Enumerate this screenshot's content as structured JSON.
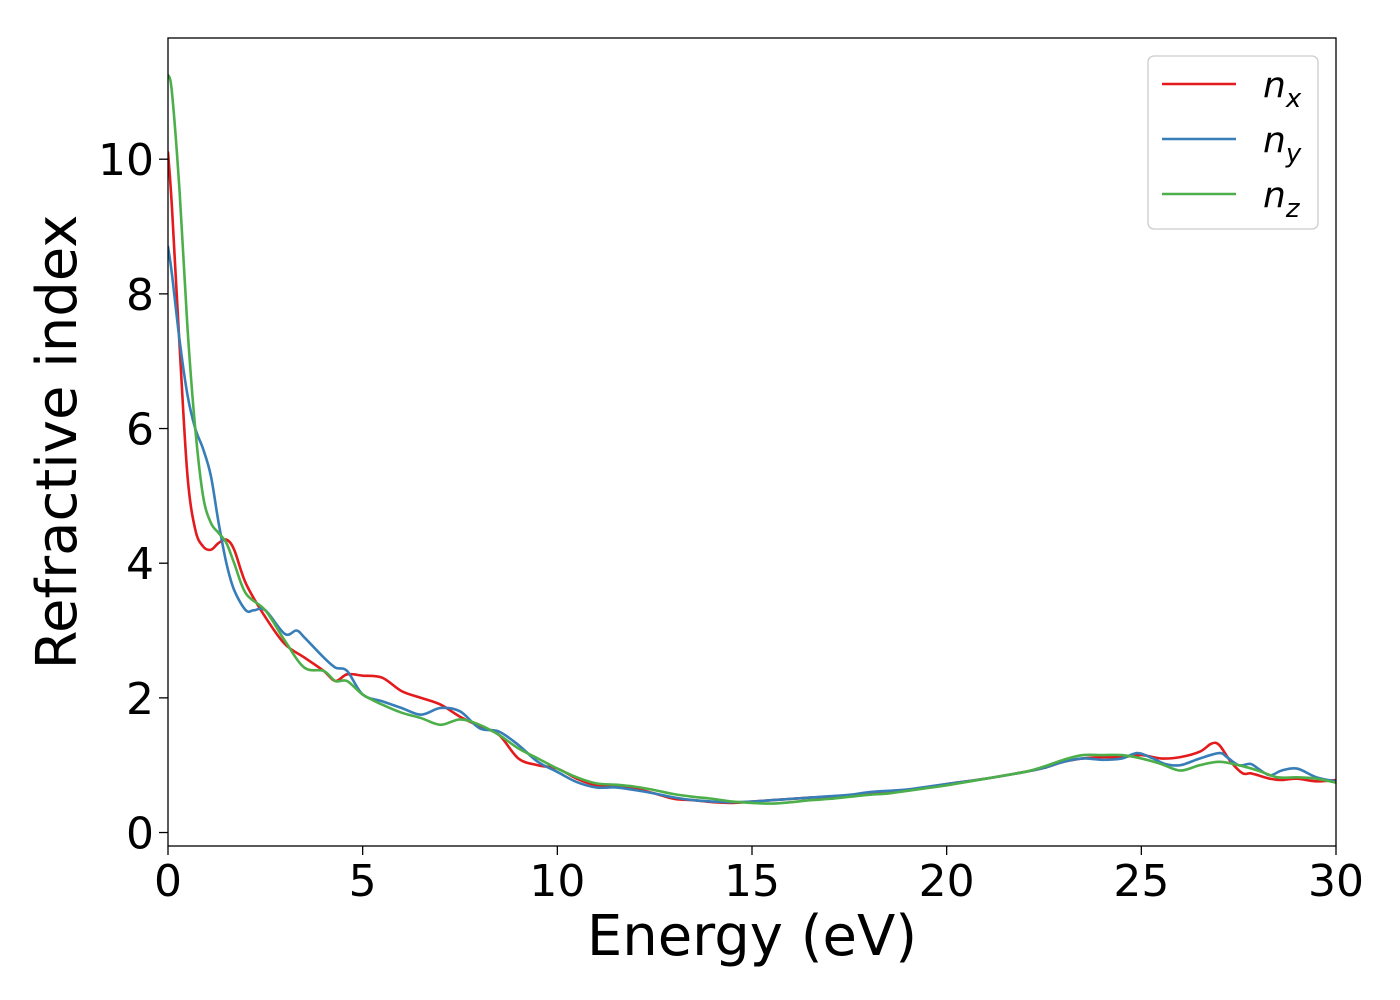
{
  "chart_data": {
    "type": "line",
    "title": "",
    "xlabel": "Energy (eV)",
    "ylabel": "Refractive index",
    "xlim": [
      0,
      30
    ],
    "ylim": [
      -0.2,
      11.8
    ],
    "xticks": [
      0,
      5,
      10,
      15,
      20,
      25,
      30
    ],
    "yticks": [
      0,
      2,
      4,
      6,
      8,
      10
    ],
    "grid": false,
    "legend_position": "top-right",
    "series": [
      {
        "name": "n",
        "subscript": "x",
        "color": "#e41a1c",
        "x": [
          0.0,
          0.1,
          0.3,
          0.5,
          0.7,
          0.9,
          1.1,
          1.3,
          1.5,
          1.7,
          2.0,
          2.5,
          3.0,
          3.5,
          4.0,
          4.3,
          4.6,
          5.0,
          5.5,
          6.0,
          6.5,
          7.0,
          7.5,
          8.0,
          8.5,
          9.0,
          9.5,
          10.0,
          10.5,
          11.0,
          11.5,
          12.0,
          12.5,
          13.0,
          13.5,
          14.0,
          14.5,
          15.0,
          15.5,
          16.0,
          16.5,
          17.0,
          17.5,
          18.0,
          18.5,
          19.0,
          19.5,
          20.0,
          21.0,
          22.0,
          22.5,
          23.0,
          23.5,
          24.0,
          24.5,
          25.0,
          25.5,
          26.0,
          26.5,
          26.8,
          27.0,
          27.3,
          27.6,
          27.8,
          28.0,
          28.3,
          28.6,
          29.0,
          29.5,
          30.0
        ],
        "y": [
          10.1,
          9.3,
          7.2,
          5.3,
          4.5,
          4.25,
          4.2,
          4.3,
          4.35,
          4.2,
          3.7,
          3.2,
          2.8,
          2.6,
          2.4,
          2.25,
          2.35,
          2.33,
          2.3,
          2.1,
          2.0,
          1.9,
          1.72,
          1.58,
          1.45,
          1.1,
          1.0,
          0.95,
          0.8,
          0.7,
          0.68,
          0.65,
          0.58,
          0.5,
          0.48,
          0.45,
          0.44,
          0.46,
          0.48,
          0.5,
          0.52,
          0.53,
          0.55,
          0.58,
          0.6,
          0.63,
          0.67,
          0.72,
          0.8,
          0.9,
          0.96,
          1.05,
          1.1,
          1.12,
          1.12,
          1.15,
          1.1,
          1.12,
          1.2,
          1.32,
          1.3,
          1.05,
          0.88,
          0.88,
          0.85,
          0.8,
          0.78,
          0.8,
          0.76,
          0.78
        ]
      },
      {
        "name": "n",
        "subscript": "y",
        "color": "#377eb8",
        "x": [
          0.0,
          0.1,
          0.3,
          0.5,
          0.7,
          0.9,
          1.1,
          1.3,
          1.5,
          1.7,
          2.0,
          2.2,
          2.5,
          3.0,
          3.3,
          3.5,
          4.0,
          4.3,
          4.6,
          5.0,
          5.5,
          6.0,
          6.5,
          7.0,
          7.5,
          8.0,
          8.5,
          9.0,
          9.5,
          10.0,
          10.5,
          11.0,
          11.5,
          12.0,
          12.5,
          13.0,
          13.5,
          14.0,
          14.5,
          15.0,
          15.5,
          16.0,
          16.5,
          17.0,
          17.5,
          18.0,
          18.5,
          19.0,
          19.5,
          20.0,
          21.0,
          22.0,
          22.5,
          23.0,
          23.5,
          24.0,
          24.5,
          24.9,
          25.3,
          25.6,
          26.0,
          26.5,
          27.0,
          27.2,
          27.5,
          27.8,
          28.0,
          28.3,
          28.6,
          29.0,
          29.5,
          30.0
        ],
        "y": [
          8.7,
          8.3,
          7.3,
          6.5,
          6.0,
          5.7,
          5.3,
          4.6,
          4.0,
          3.6,
          3.3,
          3.3,
          3.3,
          2.95,
          3.0,
          2.9,
          2.6,
          2.45,
          2.4,
          2.05,
          1.95,
          1.85,
          1.75,
          1.85,
          1.8,
          1.55,
          1.5,
          1.3,
          1.05,
          0.9,
          0.75,
          0.67,
          0.67,
          0.63,
          0.58,
          0.52,
          0.48,
          0.46,
          0.45,
          0.46,
          0.48,
          0.5,
          0.52,
          0.54,
          0.56,
          0.6,
          0.62,
          0.64,
          0.68,
          0.72,
          0.8,
          0.9,
          0.96,
          1.05,
          1.1,
          1.08,
          1.1,
          1.18,
          1.1,
          1.02,
          1.0,
          1.1,
          1.18,
          1.12,
          1.0,
          1.02,
          0.95,
          0.85,
          0.92,
          0.95,
          0.82,
          0.76
        ]
      },
      {
        "name": "n",
        "subscript": "z",
        "color": "#4daf4a",
        "x": [
          0.0,
          0.1,
          0.3,
          0.5,
          0.7,
          0.9,
          1.1,
          1.3,
          1.5,
          1.7,
          2.0,
          2.5,
          3.0,
          3.5,
          4.0,
          4.3,
          4.6,
          5.0,
          5.5,
          6.0,
          6.5,
          7.0,
          7.5,
          8.0,
          8.5,
          9.0,
          9.5,
          10.0,
          10.5,
          11.0,
          11.5,
          12.0,
          12.5,
          13.0,
          13.5,
          14.0,
          14.5,
          15.0,
          15.5,
          16.0,
          16.5,
          17.0,
          17.5,
          18.0,
          18.5,
          19.0,
          19.5,
          20.0,
          21.0,
          22.0,
          22.5,
          23.0,
          23.5,
          24.0,
          24.5,
          25.0,
          25.5,
          26.0,
          26.5,
          27.0,
          27.5,
          28.0,
          28.5,
          29.0,
          29.5,
          30.0
        ],
        "y": [
          11.25,
          11.0,
          9.5,
          7.5,
          6.0,
          5.0,
          4.6,
          4.45,
          4.3,
          4.0,
          3.55,
          3.3,
          2.85,
          2.45,
          2.4,
          2.25,
          2.25,
          2.05,
          1.9,
          1.78,
          1.7,
          1.6,
          1.68,
          1.6,
          1.45,
          1.25,
          1.1,
          0.95,
          0.82,
          0.73,
          0.71,
          0.68,
          0.63,
          0.57,
          0.53,
          0.5,
          0.46,
          0.44,
          0.43,
          0.45,
          0.48,
          0.5,
          0.53,
          0.56,
          0.58,
          0.62,
          0.66,
          0.7,
          0.8,
          0.9,
          0.98,
          1.08,
          1.15,
          1.15,
          1.15,
          1.1,
          1.02,
          0.92,
          1.0,
          1.05,
          1.0,
          0.92,
          0.82,
          0.82,
          0.8,
          0.74
        ]
      }
    ]
  }
}
